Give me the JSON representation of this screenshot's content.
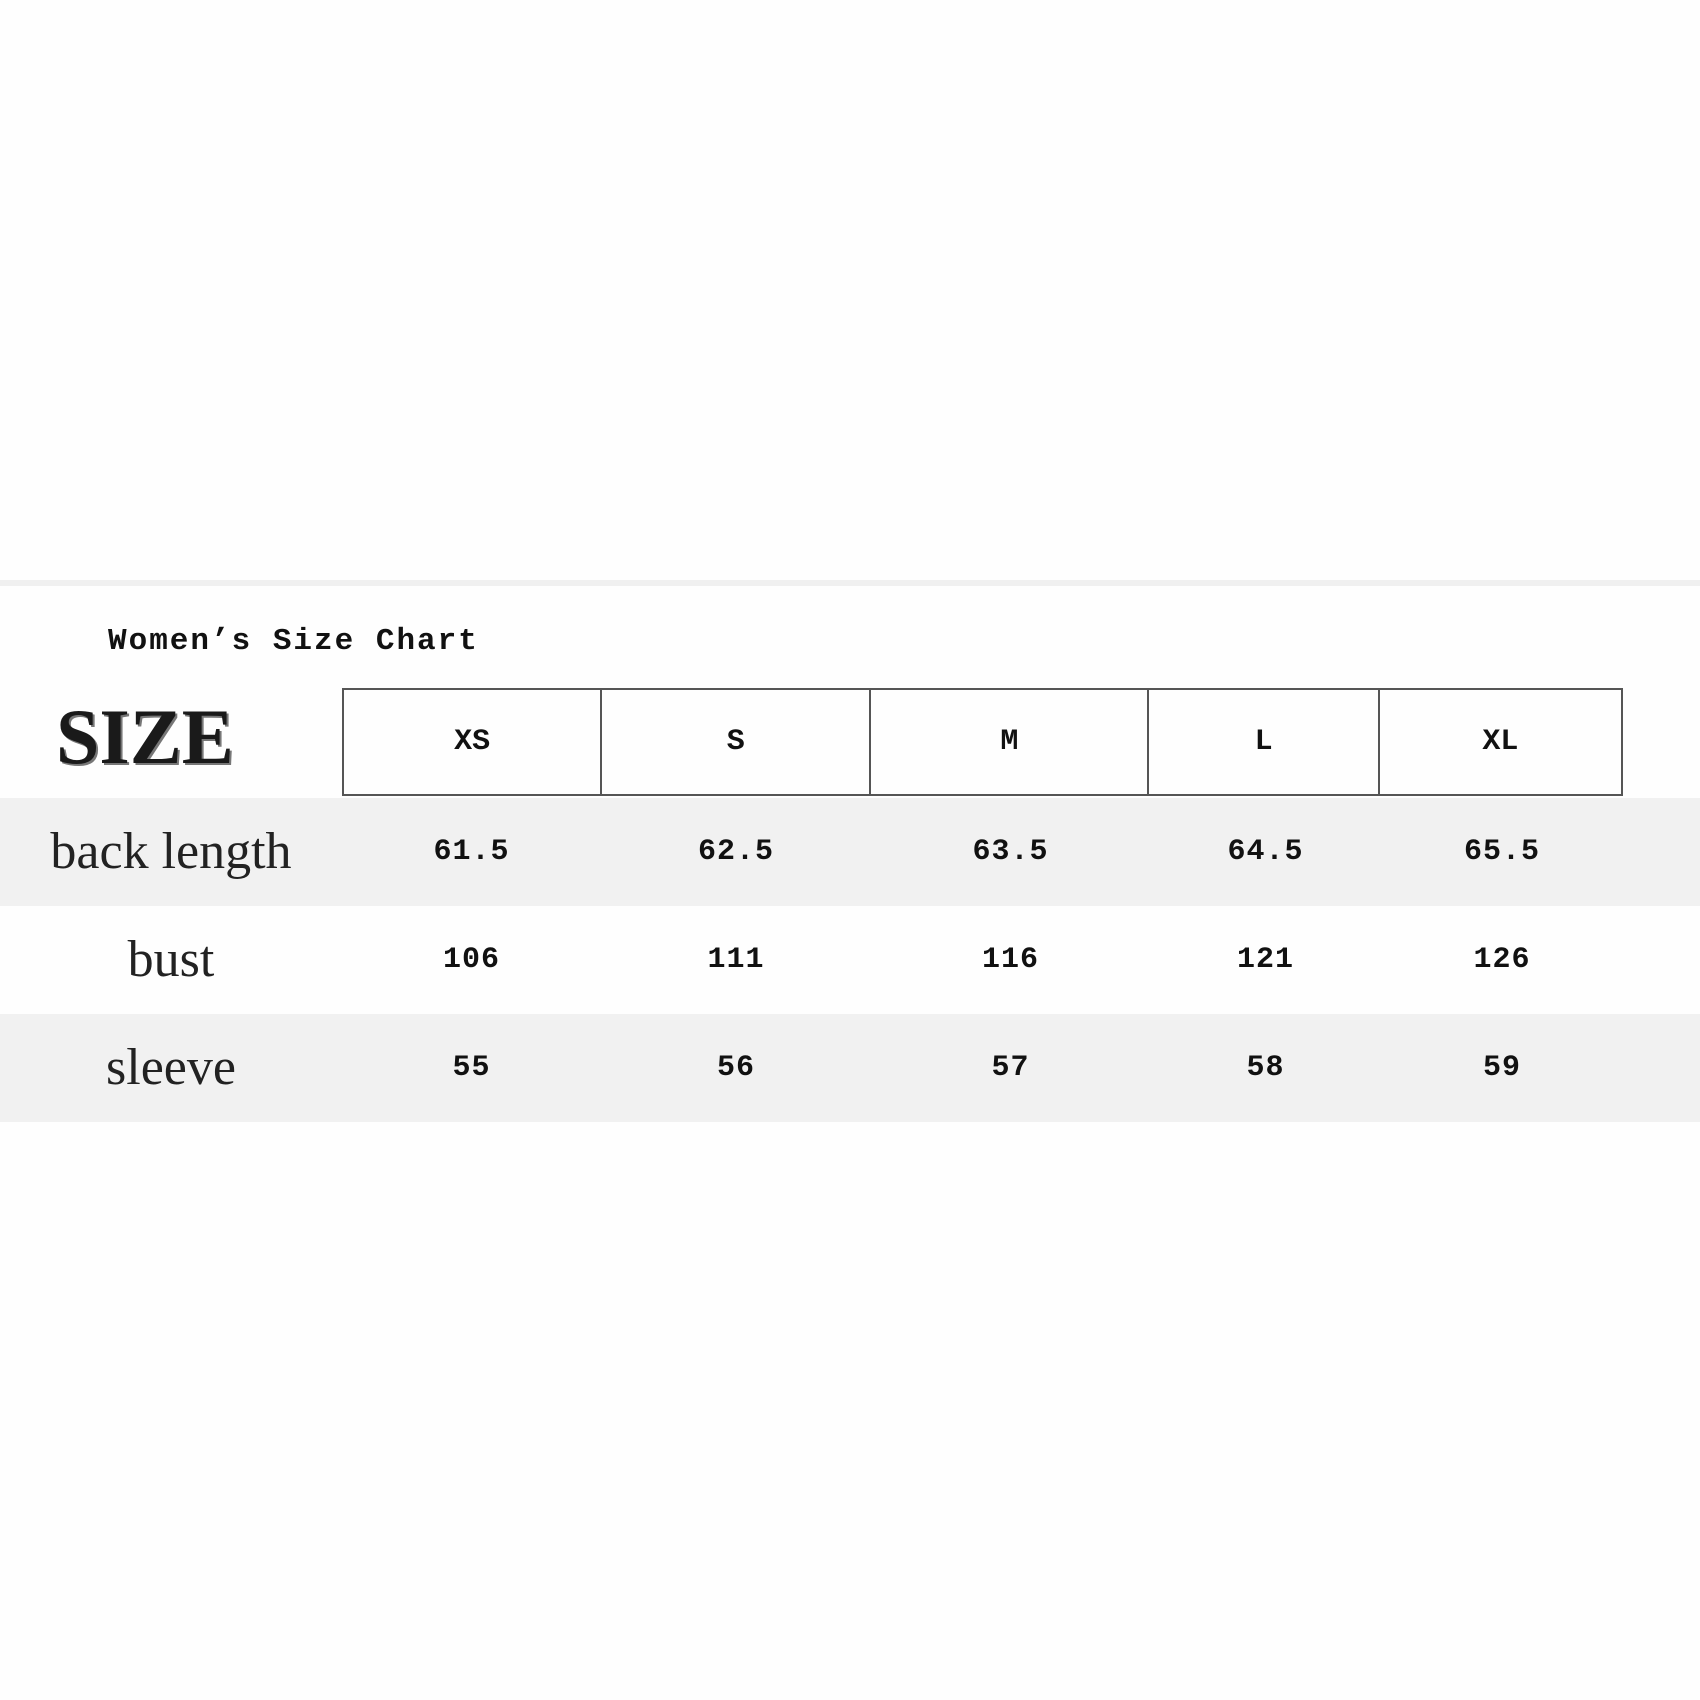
{
  "title": "Women’s Size Chart",
  "size_heading": "SIZE",
  "columns": [
    "XS",
    "S",
    "M",
    "L",
    "XL"
  ],
  "rows": [
    {
      "label": "back length",
      "values": [
        "61.5",
        "62.5",
        "63.5",
        "64.5",
        "65.5"
      ]
    },
    {
      "label": "bust",
      "values": [
        "106",
        "111",
        "116",
        "121",
        "126"
      ]
    },
    {
      "label": "sleeve",
      "values": [
        "55",
        "56",
        "57",
        "58",
        "59"
      ]
    }
  ]
}
